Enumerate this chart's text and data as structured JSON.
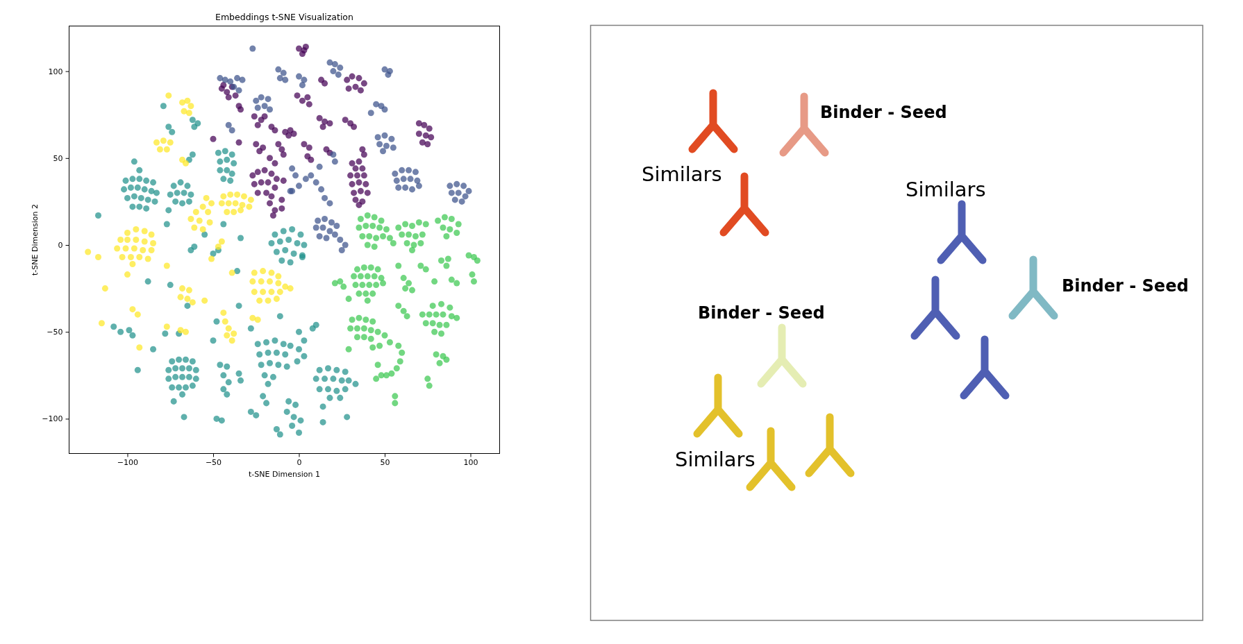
{
  "chart_data": [
    {
      "type": "scatter",
      "title": "Embeddings t-SNE Visualization",
      "xlabel": "t-SNE Dimension 1",
      "ylabel": "t-SNE Dimension 2",
      "xlim": [
        -134,
        117
      ],
      "ylim": [
        -120,
        126
      ],
      "xticks": [
        {
          "value": -100,
          "label": "−100"
        },
        {
          "value": -50,
          "label": "−50"
        },
        0,
        50,
        100
      ],
      "yticks": [
        {
          "value": -100,
          "label": "−100"
        },
        {
          "value": -50,
          "label": "−50"
        },
        0,
        50,
        100
      ],
      "marker": "circle",
      "series": [
        {
          "color": "#440154",
          "x": [
            0,
            3,
            2,
            4,
            -45,
            -42,
            -39,
            -37,
            -41,
            -44,
            -35,
            -34,
            -26,
            -22,
            -24,
            -20,
            -16,
            -14,
            -25,
            -21,
            -23,
            -12,
            -10,
            -17,
            -14,
            -27,
            -24,
            -20,
            -16,
            -13,
            -26,
            -22,
            -18,
            -14,
            -24,
            -19,
            -16,
            -17,
            -14,
            -15,
            -8,
            -6,
            -1,
            2,
            5,
            6,
            13,
            15,
            28,
            31,
            35,
            38,
            29,
            33,
            36,
            12,
            15,
            18,
            14,
            27,
            30,
            32,
            -5,
            -3,
            3,
            6,
            5,
            7,
            16,
            18,
            -9,
            37,
            38,
            31,
            35,
            33,
            37,
            30,
            34,
            38,
            31,
            35,
            39,
            32,
            36,
            40,
            33,
            37,
            35,
            70,
            73,
            76,
            70,
            74,
            77,
            72,
            75,
            -9,
            -10,
            -10,
            -50,
            -35
          ],
          "values": [
            113,
            112,
            110,
            114,
            90,
            88,
            91,
            86,
            85,
            92,
            80,
            78,
            74,
            72,
            69,
            74,
            68,
            66,
            58,
            56,
            54,
            58,
            55,
            50,
            47,
            40,
            42,
            43,
            41,
            38,
            35,
            36,
            36,
            33,
            30,
            30,
            28,
            24,
            20,
            17,
            65,
            63,
            86,
            83,
            85,
            81,
            95,
            93,
            95,
            97,
            96,
            93,
            90,
            91,
            89,
            73,
            71,
            70,
            68,
            72,
            70,
            68,
            66,
            64,
            58,
            56,
            51,
            49,
            55,
            53,
            52,
            55,
            52,
            47,
            48,
            44,
            44,
            40,
            40,
            40,
            35,
            36,
            35,
            30,
            31,
            30,
            26,
            25,
            23,
            70,
            69,
            67,
            64,
            63,
            62,
            59,
            58,
            37,
            21,
            26,
            61,
            59
          ]
        },
        {
          "color": "#3b528b",
          "x": [
            -46,
            -43,
            -40,
            -36,
            -33,
            -38,
            -35,
            -12,
            -9,
            -11,
            -8,
            -25,
            -22,
            -18,
            -24,
            -20,
            -17,
            -41,
            -39,
            -5,
            50,
            53,
            52,
            18,
            21,
            24,
            20,
            23,
            0,
            3,
            2,
            45,
            48,
            50,
            46,
            50,
            54,
            47,
            51,
            55,
            49,
            56,
            60,
            64,
            68,
            57,
            61,
            65,
            69,
            58,
            62,
            66,
            70,
            88,
            92,
            96,
            99,
            89,
            93,
            97,
            91,
            95,
            -4,
            0,
            4,
            7,
            10,
            13,
            15,
            18,
            20,
            21,
            12,
            11,
            15,
            19,
            22,
            10,
            14,
            18,
            21,
            12,
            16,
            24,
            27,
            25,
            42,
            -4,
            -2,
            -27
          ],
          "values": [
            96,
            95,
            94,
            96,
            95,
            91,
            89,
            101,
            99,
            96,
            95,
            83,
            85,
            84,
            79,
            80,
            78,
            69,
            66,
            31,
            101,
            100,
            98,
            105,
            104,
            102,
            100,
            98,
            97,
            95,
            92,
            81,
            80,
            78,
            62,
            63,
            61,
            58,
            57,
            56,
            54,
            41,
            43,
            43,
            42,
            37,
            38,
            38,
            37,
            33,
            33,
            32,
            34,
            34,
            35,
            34,
            31,
            30,
            30,
            28,
            26,
            25,
            31,
            34,
            38,
            40,
            36,
            32,
            27,
            24,
            52,
            48,
            45,
            14,
            15,
            13,
            11,
            10,
            10,
            8,
            6,
            5,
            4,
            3,
            0,
            -3,
            76,
            44,
            40,
            113
          ]
        },
        {
          "color": "#21918c",
          "x": [
            -101,
            -97,
            -93,
            -89,
            -85,
            -102,
            -98,
            -94,
            -90,
            -86,
            -83,
            -100,
            -96,
            -92,
            -88,
            -84,
            -97,
            -93,
            -89,
            -73,
            -69,
            -65,
            -75,
            -71,
            -67,
            -63,
            -72,
            -68,
            -64,
            -62,
            -59,
            -61,
            -76,
            -74,
            -47,
            -43,
            -39,
            -46,
            -42,
            -38,
            -46,
            -42,
            -39,
            -44,
            -40,
            -62,
            -64,
            -117,
            -14,
            -9,
            -4,
            1,
            -16,
            -11,
            -6,
            -1,
            3,
            -13,
            -8,
            -3,
            2,
            -10,
            -5,
            -76,
            -96,
            -93,
            -79,
            -74,
            -70,
            -66,
            -62,
            -76,
            -72,
            -68,
            -64,
            -60,
            -76,
            -72,
            -68,
            -64,
            -60,
            -74,
            -70,
            -66,
            -62,
            -68,
            -46,
            -42,
            -44,
            -41,
            -44,
            -42,
            -35,
            -34,
            -28,
            -25,
            -48,
            -45,
            -13,
            -11,
            -24,
            -19,
            -14,
            -9,
            -5,
            -23,
            -18,
            -13,
            -8,
            -22,
            -17,
            -12,
            -7,
            -20,
            -15,
            -18,
            -21,
            -19,
            -99,
            -97,
            -85,
            -94,
            -108,
            -104,
            -67,
            -73,
            -75,
            -63,
            -50,
            -36,
            -88,
            -65,
            -48,
            -50,
            -78,
            -70,
            -28,
            -35,
            -11,
            -61,
            -47,
            -77,
            -55,
            -44,
            -34,
            0,
            3,
            0,
            3,
            -1,
            8,
            10,
            12,
            17,
            22,
            27,
            10,
            15,
            20,
            25,
            29,
            12,
            17,
            22,
            27,
            18,
            24,
            -6,
            -2,
            -7,
            -3,
            1,
            -4,
            0,
            14,
            14,
            2,
            33,
            28
          ],
          "values": [
            37,
            38,
            38,
            37,
            36,
            32,
            33,
            33,
            32,
            31,
            30,
            27,
            28,
            27,
            26,
            25,
            22,
            22,
            21,
            34,
            36,
            34,
            29,
            30,
            30,
            29,
            25,
            24,
            25,
            72,
            70,
            68,
            68,
            65,
            53,
            54,
            52,
            48,
            49,
            47,
            43,
            43,
            41,
            38,
            37,
            52,
            49,
            17,
            6,
            8,
            9,
            6,
            1,
            2,
            3,
            1,
            0,
            -4,
            -3,
            -5,
            -6,
            -9,
            -10,
            20,
            48,
            43,
            80,
            -67,
            -66,
            -66,
            -67,
            -72,
            -71,
            -71,
            -71,
            -72,
            -77,
            -76,
            -76,
            -76,
            -77,
            -82,
            -82,
            -82,
            -81,
            -86,
            -69,
            -70,
            -75,
            -79,
            -83,
            -86,
            -74,
            -78,
            -96,
            -98,
            -100,
            -101,
            -106,
            -109,
            -57,
            -56,
            -55,
            -57,
            -58,
            -63,
            -62,
            -62,
            -63,
            -69,
            -68,
            -69,
            -70,
            -75,
            -76,
            -80,
            -87,
            -91,
            -49,
            -52,
            -60,
            -72,
            -47,
            -50,
            -99,
            -90,
            -23,
            -3,
            -5,
            -15,
            -21,
            -35,
            -44,
            -55,
            -51,
            -51,
            -48,
            -35,
            -41,
            -1,
            -3,
            12,
            6,
            12,
            4,
            -50,
            -55,
            -60,
            -64,
            -67,
            -48,
            -46,
            -72,
            -71,
            -72,
            -73,
            -77,
            -77,
            -77,
            -78,
            -78,
            -83,
            -83,
            -84,
            -83,
            -88,
            -88,
            -90,
            -92,
            -96,
            -99,
            -101,
            -104,
            -108,
            -93,
            -102,
            -7,
            -80,
            -99
          ]
        },
        {
          "color": "#3cc850",
          "x": [
            36,
            40,
            44,
            48,
            35,
            39,
            43,
            47,
            51,
            37,
            41,
            45,
            49,
            53,
            40,
            44,
            55,
            58,
            62,
            66,
            70,
            74,
            60,
            64,
            68,
            72,
            63,
            67,
            71,
            66,
            81,
            85,
            89,
            93,
            84,
            88,
            92,
            86,
            34,
            38,
            42,
            46,
            32,
            36,
            40,
            44,
            48,
            33,
            37,
            41,
            45,
            49,
            35,
            39,
            43,
            40,
            21,
            24,
            26,
            58,
            61,
            64,
            66,
            62,
            71,
            74,
            83,
            87,
            86,
            99,
            102,
            104,
            89,
            92,
            101,
            102,
            79,
            58,
            61,
            63,
            78,
            83,
            88,
            72,
            76,
            80,
            84,
            89,
            92,
            74,
            78,
            82,
            86,
            79,
            31,
            35,
            39,
            43,
            30,
            34,
            38,
            42,
            46,
            50,
            34,
            38,
            42,
            53,
            43,
            47,
            46,
            45,
            48,
            58,
            60,
            59,
            57,
            54,
            51,
            56,
            56,
            80,
            84,
            82,
            86,
            75,
            76,
            29,
            29,
            83
          ],
          "values": [
            15,
            17,
            16,
            14,
            10,
            11,
            11,
            10,
            9,
            5,
            5,
            4,
            5,
            4,
            0,
            -1,
            1,
            10,
            12,
            11,
            13,
            12,
            6,
            6,
            5,
            6,
            1,
            0,
            1,
            -3,
            14,
            16,
            15,
            12,
            10,
            9,
            7,
            5,
            -14,
            -13,
            -13,
            -14,
            -18,
            -18,
            -18,
            -18,
            -19,
            -23,
            -23,
            -23,
            -23,
            -22,
            -28,
            -28,
            -28,
            -32,
            -22,
            -21,
            -24,
            -12,
            -19,
            -22,
            -26,
            -25,
            -12,
            -14,
            -9,
            -8,
            -12,
            -6,
            -7,
            -9,
            -20,
            -22,
            -17,
            -21,
            -21,
            -35,
            -38,
            -41,
            -35,
            -34,
            -36,
            -40,
            -40,
            -40,
            -40,
            -41,
            -42,
            -45,
            -45,
            -46,
            -46,
            -50,
            -43,
            -42,
            -43,
            -44,
            -48,
            -48,
            -48,
            -49,
            -50,
            -52,
            -53,
            -53,
            -54,
            -56,
            -59,
            -58,
            -69,
            -77,
            -75,
            -58,
            -62,
            -67,
            -71,
            -74,
            -75,
            -87,
            -91,
            -63,
            -64,
            -68,
            -66,
            -77,
            -81,
            -31,
            -60,
            -51
          ]
        },
        {
          "color": "#fde725",
          "x": [
            -68,
            -65,
            -63,
            -67,
            -64,
            -76,
            -83,
            -79,
            -75,
            -81,
            -77,
            -68,
            -66,
            -44,
            -40,
            -36,
            -32,
            -28,
            -45,
            -41,
            -37,
            -33,
            -29,
            -42,
            -38,
            -34,
            -54,
            -51,
            -56,
            -60,
            -53,
            -63,
            -58,
            -52,
            -61,
            -56,
            -100,
            -95,
            -90,
            -86,
            -104,
            -100,
            -95,
            -90,
            -85,
            -106,
            -101,
            -96,
            -91,
            -86,
            -103,
            -98,
            -93,
            -88,
            -97,
            -123,
            -117,
            -113,
            -26,
            -21,
            -16,
            -12,
            -27,
            -22,
            -17,
            -12,
            -8,
            -26,
            -21,
            -16,
            -11,
            -23,
            -18,
            -13,
            -5,
            -44,
            -43,
            -41,
            -42,
            -38,
            -39,
            -97,
            -94,
            -68,
            -64,
            -69,
            -65,
            -62,
            -27,
            -24,
            -77,
            -69,
            -66,
            -93,
            -115,
            -100,
            -47,
            -45,
            -77,
            -39,
            -51,
            -55
          ],
          "values": [
            82,
            83,
            80,
            77,
            76,
            86,
            59,
            60,
            59,
            55,
            55,
            49,
            47,
            28,
            29,
            29,
            28,
            26,
            24,
            24,
            24,
            23,
            22,
            19,
            19,
            20,
            27,
            24,
            22,
            19,
            19,
            15,
            14,
            13,
            10,
            9,
            7,
            9,
            8,
            6,
            3,
            3,
            3,
            2,
            1,
            -2,
            -2,
            -2,
            -3,
            -3,
            -7,
            -7,
            -7,
            -8,
            -11,
            -4,
            -7,
            -25,
            -16,
            -15,
            -16,
            -18,
            -21,
            -21,
            -21,
            -22,
            -24,
            -27,
            -27,
            -27,
            -27,
            -32,
            -32,
            -31,
            -25,
            -39,
            -44,
            -48,
            -52,
            -51,
            -55,
            -37,
            -40,
            -25,
            -26,
            -30,
            -31,
            -33,
            -42,
            -43,
            -47,
            -49,
            -50,
            -59,
            -45,
            -17,
            -1,
            2,
            -12,
            -16,
            -8,
            -32
          ]
        }
      ]
    },
    {
      "type": "other",
      "annotations": [
        "Binder - Seed",
        "Similars",
        "Similars",
        "Binder - Seed",
        "Binder - Seed",
        "Similars"
      ]
    }
  ]
}
